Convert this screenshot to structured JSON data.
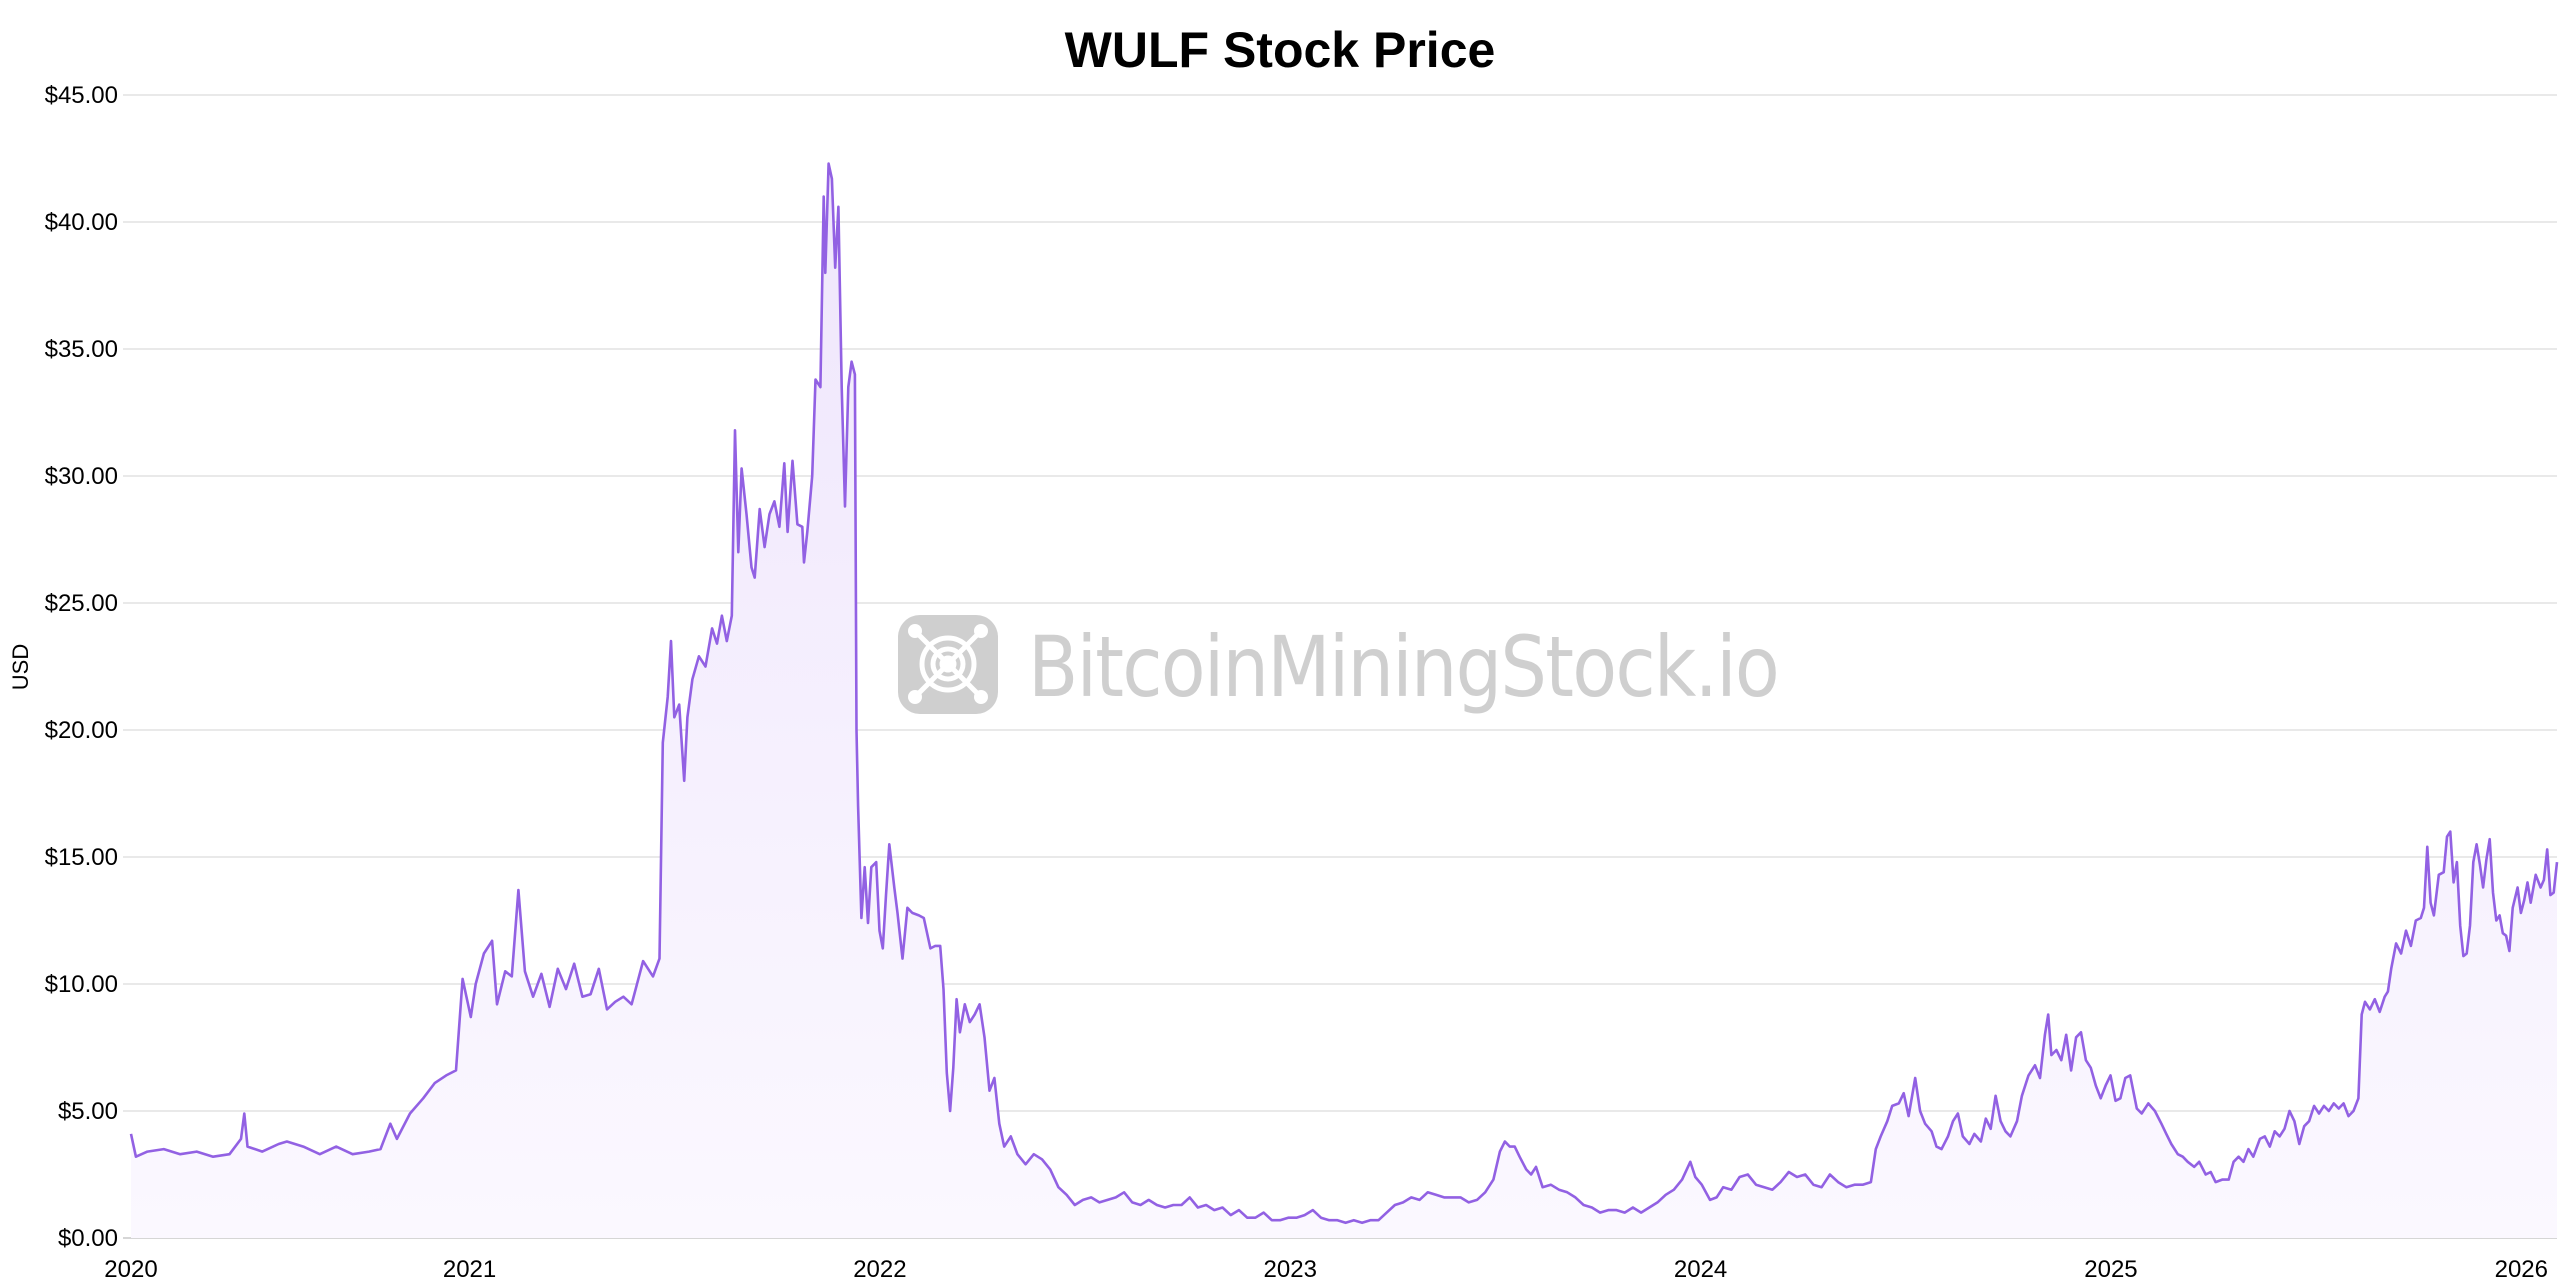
{
  "chart_data": {
    "type": "area",
    "title": "WULF Stock Price",
    "xlabel": "",
    "ylabel": "USD",
    "xlim": [
      2020.175,
      2026.087
    ],
    "ylim": [
      0,
      45
    ],
    "x_ticks": [
      2020,
      2021,
      2022,
      2023,
      2024,
      2025,
      2026
    ],
    "x_tick_labels": [
      "2020",
      "2021",
      "2022",
      "2023",
      "2024",
      "2025",
      "2026"
    ],
    "y_ticks": [
      0,
      5,
      10,
      15,
      20,
      25,
      30,
      35,
      40,
      45
    ],
    "y_tick_labels": [
      "$0.00",
      "$5.00",
      "$10.00",
      "$15.00",
      "$20.00",
      "$25.00",
      "$30.00",
      "$35.00",
      "$40.00",
      "$45.00"
    ],
    "grid": true,
    "legend": "none",
    "colors": {
      "line": "#9261e3",
      "fill_top": "#efe6fc",
      "fill_bottom": "#fbf8ff",
      "grid": "#e2e2e2",
      "watermark": "#cfcfcf"
    },
    "watermark": "BitcoinMiningStock.io",
    "points": [
      [
        2020.175,
        4.1
      ],
      [
        2020.187,
        3.2
      ],
      [
        2020.215,
        3.4
      ],
      [
        2020.255,
        3.5
      ],
      [
        2020.295,
        3.3
      ],
      [
        2020.335,
        3.4
      ],
      [
        2020.375,
        3.2
      ],
      [
        2020.415,
        3.3
      ],
      [
        2020.443,
        3.9
      ],
      [
        2020.451,
        4.9
      ],
      [
        2020.459,
        3.6
      ],
      [
        2020.495,
        3.4
      ],
      [
        2020.535,
        3.7
      ],
      [
        2020.555,
        3.8
      ],
      [
        2020.595,
        3.6
      ],
      [
        2020.635,
        3.3
      ],
      [
        2020.675,
        3.6
      ],
      [
        2020.715,
        3.3
      ],
      [
        2020.755,
        3.4
      ],
      [
        2020.783,
        3.5
      ],
      [
        2020.807,
        4.5
      ],
      [
        2020.823,
        3.9
      ],
      [
        2020.855,
        4.9
      ],
      [
        2020.887,
        5.5
      ],
      [
        2020.915,
        6.1
      ],
      [
        2020.943,
        6.4
      ],
      [
        2020.967,
        6.6
      ],
      [
        2020.983,
        10.2
      ],
      [
        2021.003,
        8.7
      ],
      [
        2021.015,
        10.0
      ],
      [
        2021.035,
        11.2
      ],
      [
        2021.055,
        11.7
      ],
      [
        2021.067,
        9.2
      ],
      [
        2021.087,
        10.5
      ],
      [
        2021.103,
        10.3
      ],
      [
        2021.119,
        13.7
      ],
      [
        2021.135,
        10.5
      ],
      [
        2021.155,
        9.5
      ],
      [
        2021.175,
        10.4
      ],
      [
        2021.195,
        9.1
      ],
      [
        2021.215,
        10.6
      ],
      [
        2021.235,
        9.8
      ],
      [
        2021.255,
        10.8
      ],
      [
        2021.275,
        9.5
      ],
      [
        2021.295,
        9.6
      ],
      [
        2021.315,
        10.6
      ],
      [
        2021.335,
        9.0
      ],
      [
        2021.355,
        9.3
      ],
      [
        2021.375,
        9.5
      ],
      [
        2021.395,
        9.2
      ],
      [
        2021.423,
        10.9
      ],
      [
        2021.447,
        10.3
      ],
      [
        2021.463,
        11.0
      ],
      [
        2021.471,
        19.5
      ],
      [
        2021.483,
        21.3
      ],
      [
        2021.491,
        23.5
      ],
      [
        2021.499,
        20.5
      ],
      [
        2021.511,
        21.0
      ],
      [
        2021.523,
        18.0
      ],
      [
        2021.531,
        20.5
      ],
      [
        2021.543,
        22.0
      ],
      [
        2021.559,
        22.9
      ],
      [
        2021.575,
        22.5
      ],
      [
        2021.591,
        24.0
      ],
      [
        2021.603,
        23.4
      ],
      [
        2021.615,
        24.5
      ],
      [
        2021.627,
        23.5
      ],
      [
        2021.639,
        24.5
      ],
      [
        2021.647,
        31.8
      ],
      [
        2021.655,
        27.0
      ],
      [
        2021.663,
        30.3
      ],
      [
        2021.675,
        28.5
      ],
      [
        2021.687,
        26.4
      ],
      [
        2021.695,
        26.0
      ],
      [
        2021.707,
        28.7
      ],
      [
        2021.719,
        27.2
      ],
      [
        2021.731,
        28.5
      ],
      [
        2021.743,
        29.0
      ],
      [
        2021.755,
        28.0
      ],
      [
        2021.767,
        30.5
      ],
      [
        2021.775,
        27.8
      ],
      [
        2021.787,
        30.6
      ],
      [
        2021.799,
        28.1
      ],
      [
        2021.811,
        28.0
      ],
      [
        2021.815,
        26.6
      ],
      [
        2021.823,
        27.8
      ],
      [
        2021.835,
        30.0
      ],
      [
        2021.843,
        33.8
      ],
      [
        2021.855,
        33.5
      ],
      [
        2021.863,
        41.0
      ],
      [
        2021.867,
        38.0
      ],
      [
        2021.875,
        42.3
      ],
      [
        2021.883,
        41.7
      ],
      [
        2021.891,
        38.2
      ],
      [
        2021.899,
        40.6
      ],
      [
        2021.907,
        33.5
      ],
      [
        2021.915,
        28.8
      ],
      [
        2021.923,
        33.5
      ],
      [
        2021.931,
        34.5
      ],
      [
        2021.939,
        34.0
      ],
      [
        2021.943,
        20.0
      ],
      [
        2021.947,
        17.0
      ],
      [
        2021.955,
        12.6
      ],
      [
        2021.963,
        14.6
      ],
      [
        2021.971,
        12.4
      ],
      [
        2021.979,
        14.6
      ],
      [
        2021.991,
        14.8
      ],
      [
        2021.999,
        12.1
      ],
      [
        2022.007,
        11.4
      ],
      [
        2022.015,
        13.5
      ],
      [
        2022.023,
        15.5
      ],
      [
        2022.035,
        13.8
      ],
      [
        2022.043,
        12.8
      ],
      [
        2022.055,
        11.0
      ],
      [
        2022.067,
        13.0
      ],
      [
        2022.079,
        12.8
      ],
      [
        2022.095,
        12.7
      ],
      [
        2022.107,
        12.6
      ],
      [
        2022.123,
        11.4
      ],
      [
        2022.135,
        11.5
      ],
      [
        2022.147,
        11.5
      ],
      [
        2022.155,
        9.8
      ],
      [
        2022.163,
        6.5
      ],
      [
        2022.171,
        5.0
      ],
      [
        2022.179,
        6.7
      ],
      [
        2022.187,
        9.4
      ],
      [
        2022.195,
        8.1
      ],
      [
        2022.207,
        9.2
      ],
      [
        2022.219,
        8.5
      ],
      [
        2022.231,
        8.8
      ],
      [
        2022.243,
        9.2
      ],
      [
        2022.255,
        7.9
      ],
      [
        2022.267,
        5.8
      ],
      [
        2022.279,
        6.3
      ],
      [
        2022.291,
        4.5
      ],
      [
        2022.303,
        3.6
      ],
      [
        2022.319,
        4.0
      ],
      [
        2022.335,
        3.3
      ],
      [
        2022.355,
        2.9
      ],
      [
        2022.375,
        3.3
      ],
      [
        2022.395,
        3.1
      ],
      [
        2022.415,
        2.7
      ],
      [
        2022.435,
        2.0
      ],
      [
        2022.455,
        1.7
      ],
      [
        2022.475,
        1.3
      ],
      [
        2022.495,
        1.5
      ],
      [
        2022.515,
        1.6
      ],
      [
        2022.535,
        1.4
      ],
      [
        2022.555,
        1.5
      ],
      [
        2022.575,
        1.6
      ],
      [
        2022.595,
        1.8
      ],
      [
        2022.615,
        1.4
      ],
      [
        2022.635,
        1.3
      ],
      [
        2022.655,
        1.5
      ],
      [
        2022.675,
        1.3
      ],
      [
        2022.695,
        1.2
      ],
      [
        2022.715,
        1.3
      ],
      [
        2022.735,
        1.3
      ],
      [
        2022.755,
        1.6
      ],
      [
        2022.775,
        1.2
      ],
      [
        2022.795,
        1.3
      ],
      [
        2022.815,
        1.1
      ],
      [
        2022.835,
        1.2
      ],
      [
        2022.855,
        0.9
      ],
      [
        2022.875,
        1.1
      ],
      [
        2022.895,
        0.8
      ],
      [
        2022.915,
        0.8
      ],
      [
        2022.935,
        1.0
      ],
      [
        2022.955,
        0.7
      ],
      [
        2022.975,
        0.7
      ],
      [
        2022.995,
        0.8
      ],
      [
        2023.015,
        0.8
      ],
      [
        2023.035,
        0.9
      ],
      [
        2023.055,
        1.1
      ],
      [
        2023.075,
        0.8
      ],
      [
        2023.095,
        0.7
      ],
      [
        2023.115,
        0.7
      ],
      [
        2023.135,
        0.6
      ],
      [
        2023.155,
        0.7
      ],
      [
        2023.175,
        0.6
      ],
      [
        2023.195,
        0.7
      ],
      [
        2023.215,
        0.7
      ],
      [
        2023.235,
        1.0
      ],
      [
        2023.255,
        1.3
      ],
      [
        2023.275,
        1.4
      ],
      [
        2023.295,
        1.6
      ],
      [
        2023.315,
        1.5
      ],
      [
        2023.335,
        1.8
      ],
      [
        2023.355,
        1.7
      ],
      [
        2023.375,
        1.6
      ],
      [
        2023.395,
        1.6
      ],
      [
        2023.415,
        1.6
      ],
      [
        2023.435,
        1.4
      ],
      [
        2023.455,
        1.5
      ],
      [
        2023.475,
        1.8
      ],
      [
        2023.495,
        2.3
      ],
      [
        2023.511,
        3.4
      ],
      [
        2023.523,
        3.8
      ],
      [
        2023.535,
        3.6
      ],
      [
        2023.547,
        3.6
      ],
      [
        2023.559,
        3.2
      ],
      [
        2023.575,
        2.7
      ],
      [
        2023.587,
        2.5
      ],
      [
        2023.599,
        2.8
      ],
      [
        2023.615,
        2.0
      ],
      [
        2023.635,
        2.1
      ],
      [
        2023.655,
        1.9
      ],
      [
        2023.675,
        1.8
      ],
      [
        2023.695,
        1.6
      ],
      [
        2023.715,
        1.3
      ],
      [
        2023.735,
        1.2
      ],
      [
        2023.755,
        1.0
      ],
      [
        2023.775,
        1.1
      ],
      [
        2023.795,
        1.1
      ],
      [
        2023.815,
        1.0
      ],
      [
        2023.835,
        1.2
      ],
      [
        2023.855,
        1.0
      ],
      [
        2023.875,
        1.2
      ],
      [
        2023.895,
        1.4
      ],
      [
        2023.915,
        1.7
      ],
      [
        2023.935,
        1.9
      ],
      [
        2023.955,
        2.3
      ],
      [
        2023.975,
        3.0
      ],
      [
        2023.987,
        2.4
      ],
      [
        2024.003,
        2.1
      ],
      [
        2024.023,
        1.5
      ],
      [
        2024.039,
        1.6
      ],
      [
        2024.055,
        2.0
      ],
      [
        2024.075,
        1.9
      ],
      [
        2024.095,
        2.4
      ],
      [
        2024.115,
        2.5
      ],
      [
        2024.135,
        2.1
      ],
      [
        2024.155,
        2.0
      ],
      [
        2024.175,
        1.9
      ],
      [
        2024.195,
        2.2
      ],
      [
        2024.215,
        2.6
      ],
      [
        2024.235,
        2.4
      ],
      [
        2024.255,
        2.5
      ],
      [
        2024.275,
        2.1
      ],
      [
        2024.295,
        2.0
      ],
      [
        2024.315,
        2.5
      ],
      [
        2024.335,
        2.2
      ],
      [
        2024.355,
        2.0
      ],
      [
        2024.375,
        2.1
      ],
      [
        2024.395,
        2.1
      ],
      [
        2024.415,
        2.2
      ],
      [
        2024.427,
        3.5
      ],
      [
        2024.439,
        4.0
      ],
      [
        2024.455,
        4.6
      ],
      [
        2024.467,
        5.2
      ],
      [
        2024.483,
        5.3
      ],
      [
        2024.495,
        5.7
      ],
      [
        2024.507,
        4.8
      ],
      [
        2024.523,
        6.3
      ],
      [
        2024.535,
        5.0
      ],
      [
        2024.547,
        4.5
      ],
      [
        2024.563,
        4.2
      ],
      [
        2024.575,
        3.6
      ],
      [
        2024.587,
        3.5
      ],
      [
        2024.603,
        4.0
      ],
      [
        2024.615,
        4.6
      ],
      [
        2024.627,
        4.9
      ],
      [
        2024.639,
        4.0
      ],
      [
        2024.655,
        3.7
      ],
      [
        2024.667,
        4.1
      ],
      [
        2024.683,
        3.8
      ],
      [
        2024.695,
        4.7
      ],
      [
        2024.707,
        4.3
      ],
      [
        2024.719,
        5.6
      ],
      [
        2024.731,
        4.6
      ],
      [
        2024.743,
        4.2
      ],
      [
        2024.755,
        4.0
      ],
      [
        2024.771,
        4.6
      ],
      [
        2024.783,
        5.6
      ],
      [
        2024.799,
        6.4
      ],
      [
        2024.815,
        6.8
      ],
      [
        2024.827,
        6.3
      ],
      [
        2024.839,
        8.0
      ],
      [
        2024.847,
        8.8
      ],
      [
        2024.855,
        7.2
      ],
      [
        2024.867,
        7.4
      ],
      [
        2024.879,
        7.0
      ],
      [
        2024.891,
        8.0
      ],
      [
        2024.903,
        6.6
      ],
      [
        2024.915,
        7.9
      ],
      [
        2024.927,
        8.1
      ],
      [
        2024.939,
        7.0
      ],
      [
        2024.951,
        6.7
      ],
      [
        2024.963,
        6.0
      ],
      [
        2024.975,
        5.5
      ],
      [
        2024.987,
        6.0
      ],
      [
        2024.999,
        6.4
      ],
      [
        2025.011,
        5.4
      ],
      [
        2025.023,
        5.5
      ],
      [
        2025.035,
        6.3
      ],
      [
        2025.047,
        6.4
      ],
      [
        2025.063,
        5.1
      ],
      [
        2025.075,
        4.9
      ],
      [
        2025.091,
        5.3
      ],
      [
        2025.107,
        5.0
      ],
      [
        2025.123,
        4.5
      ],
      [
        2025.135,
        4.1
      ],
      [
        2025.147,
        3.7
      ],
      [
        2025.163,
        3.3
      ],
      [
        2025.175,
        3.2
      ],
      [
        2025.187,
        3.0
      ],
      [
        2025.203,
        2.8
      ],
      [
        2025.215,
        3.0
      ],
      [
        2025.231,
        2.5
      ],
      [
        2025.243,
        2.6
      ],
      [
        2025.255,
        2.2
      ],
      [
        2025.271,
        2.3
      ],
      [
        2025.287,
        2.3
      ],
      [
        2025.299,
        3.0
      ],
      [
        2025.311,
        3.2
      ],
      [
        2025.323,
        3.0
      ],
      [
        2025.335,
        3.5
      ],
      [
        2025.347,
        3.2
      ],
      [
        2025.363,
        3.9
      ],
      [
        2025.375,
        4.0
      ],
      [
        2025.387,
        3.6
      ],
      [
        2025.399,
        4.2
      ],
      [
        2025.411,
        4.0
      ],
      [
        2025.423,
        4.3
      ],
      [
        2025.435,
        5.0
      ],
      [
        2025.447,
        4.6
      ],
      [
        2025.459,
        3.7
      ],
      [
        2025.471,
        4.4
      ],
      [
        2025.483,
        4.6
      ],
      [
        2025.495,
        5.2
      ],
      [
        2025.507,
        4.9
      ],
      [
        2025.519,
        5.2
      ],
      [
        2025.531,
        5.0
      ],
      [
        2025.543,
        5.3
      ],
      [
        2025.555,
        5.1
      ],
      [
        2025.567,
        5.3
      ],
      [
        2025.579,
        4.8
      ],
      [
        2025.591,
        5.0
      ],
      [
        2025.603,
        5.5
      ],
      [
        2025.611,
        8.8
      ],
      [
        2025.619,
        9.3
      ],
      [
        2025.631,
        9.0
      ],
      [
        2025.643,
        9.4
      ],
      [
        2025.655,
        8.9
      ],
      [
        2025.667,
        9.5
      ],
      [
        2025.675,
        9.7
      ],
      [
        2025.683,
        10.6
      ],
      [
        2025.695,
        11.6
      ],
      [
        2025.707,
        11.2
      ],
      [
        2025.719,
        12.1
      ],
      [
        2025.731,
        11.5
      ],
      [
        2025.743,
        12.5
      ],
      [
        2025.755,
        12.6
      ],
      [
        2025.763,
        13.0
      ],
      [
        2025.771,
        15.4
      ],
      [
        2025.779,
        13.2
      ],
      [
        2025.787,
        12.7
      ],
      [
        2025.799,
        14.3
      ],
      [
        2025.811,
        14.4
      ],
      [
        2025.819,
        15.8
      ],
      [
        2025.827,
        16.0
      ],
      [
        2025.835,
        14.0
      ],
      [
        2025.843,
        14.8
      ],
      [
        2025.851,
        12.3
      ],
      [
        2025.859,
        11.1
      ],
      [
        2025.867,
        11.2
      ],
      [
        2025.875,
        12.3
      ],
      [
        2025.883,
        14.8
      ],
      [
        2025.891,
        15.5
      ],
      [
        2025.899,
        14.7
      ],
      [
        2025.907,
        13.8
      ],
      [
        2025.915,
        14.9
      ],
      [
        2025.923,
        15.7
      ],
      [
        2025.931,
        13.6
      ],
      [
        2025.939,
        12.5
      ],
      [
        2025.947,
        12.7
      ],
      [
        2025.955,
        12.0
      ],
      [
        2025.963,
        11.9
      ],
      [
        2025.971,
        11.3
      ],
      [
        2025.979,
        13.0
      ],
      [
        2025.991,
        13.8
      ],
      [
        2025.999,
        12.8
      ],
      [
        2026.007,
        13.3
      ],
      [
        2026.015,
        14.0
      ],
      [
        2026.023,
        13.2
      ],
      [
        2026.035,
        14.3
      ],
      [
        2026.047,
        13.8
      ],
      [
        2026.055,
        14.1
      ],
      [
        2026.063,
        15.3
      ],
      [
        2026.071,
        13.5
      ],
      [
        2026.079,
        13.6
      ],
      [
        2026.087,
        14.8
      ]
    ]
  }
}
